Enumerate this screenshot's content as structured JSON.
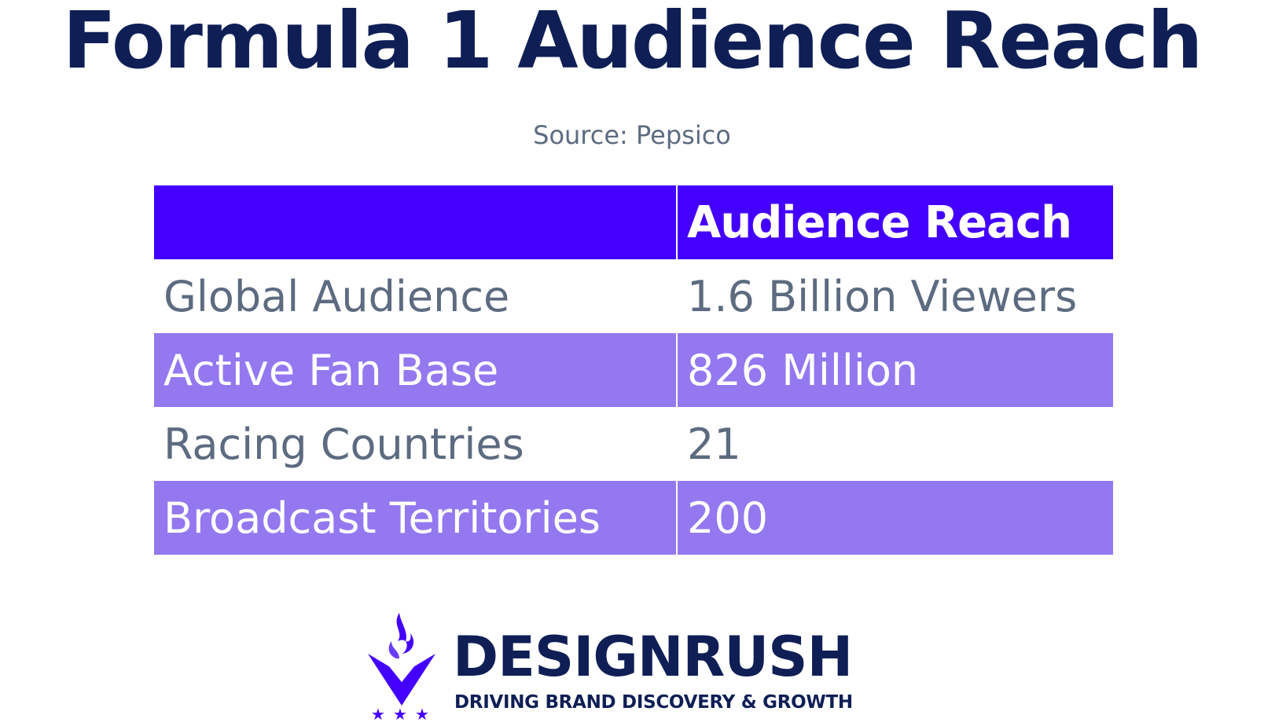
{
  "title": "Formula 1 Audience Reach",
  "source": "Source:  Pepsico",
  "colors": {
    "title": "#0f1f55",
    "header_bg": "#4400ff",
    "shaded_row_bg": "#9478f0",
    "plain_row_text": "#5d6b80"
  },
  "chart_data": {
    "type": "table",
    "title": "Formula 1 Audience Reach",
    "columns": [
      "",
      "Audience Reach"
    ],
    "rows": [
      {
        "label": "Global Audience",
        "value": "1.6 Billion Viewers"
      },
      {
        "label": "Active Fan Base",
        "value": "826 Million"
      },
      {
        "label": "Racing Countries",
        "value": "21"
      },
      {
        "label": "Broadcast Territories",
        "value": "200"
      }
    ]
  },
  "logo": {
    "icon": "torch-shield-icon",
    "wordmark": "DESIGNRUSH",
    "tagline": "DRIVING BRAND DISCOVERY & GROWTH"
  }
}
